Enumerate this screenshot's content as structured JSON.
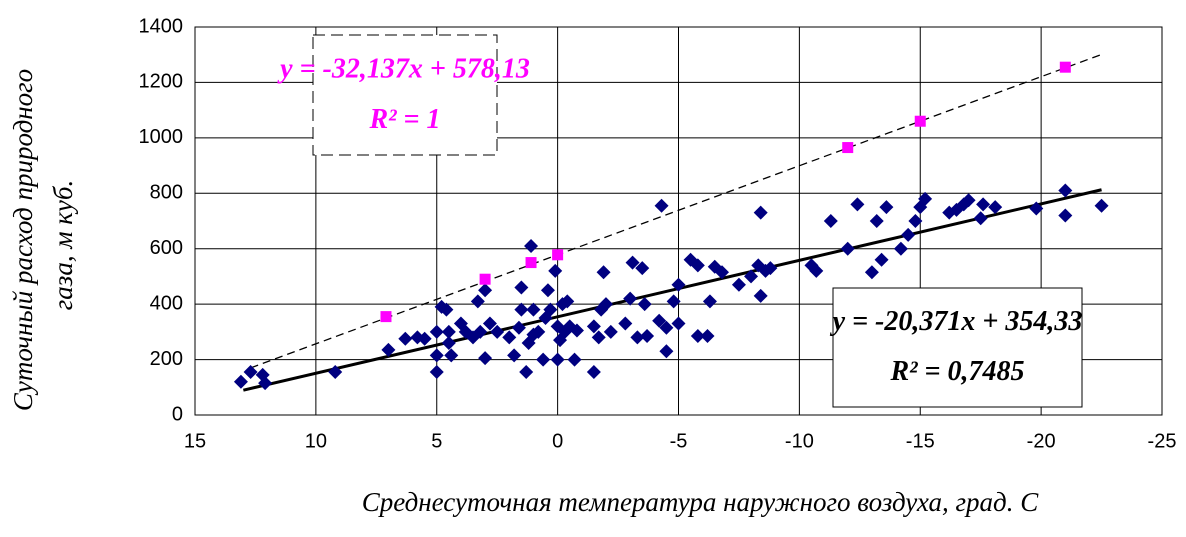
{
  "chart_data": {
    "type": "scatter",
    "xlabel": "Среднесуточная температура наружного воздуха, град. С",
    "ylabel": [
      "Суточный расход природного",
      "газа, м куб."
    ],
    "xlim": [
      15,
      -25
    ],
    "xticks": [
      15,
      10,
      5,
      0,
      -5,
      -10,
      -15,
      -20,
      -25
    ],
    "ylim": [
      0,
      1400
    ],
    "yticks": [
      0,
      200,
      400,
      600,
      800,
      1000,
      1200,
      1400
    ],
    "grid": true,
    "series": [
      {
        "marker": "diamond",
        "color": "#000080",
        "x": [
          13.1,
          12.7,
          12.2,
          12.1,
          9.2,
          7,
          6.3,
          5.8,
          5.5,
          5,
          5,
          5,
          4.8,
          4.6,
          4.5,
          4.5,
          4.4,
          4,
          3.8,
          3.5,
          3.3,
          3.2,
          3,
          3,
          2.8,
          2.5,
          2,
          1.8,
          1.6,
          1.5,
          1.5,
          1.3,
          1.2,
          1,
          1.1,
          1,
          0.8,
          0.6,
          0.5,
          0.4,
          0.3,
          0.1,
          0,
          0,
          -0.1,
          -0.2,
          -0.3,
          -0.4,
          -0.5,
          -0.7,
          -0.8,
          -1.5,
          -1.5,
          -1.7,
          -1.8,
          -1.9,
          -2,
          -2.2,
          -2.8,
          -3,
          -3.1,
          -3.3,
          -3.5,
          -3.7,
          -3.6,
          -4.2,
          -4.3,
          -4.5,
          -4.5,
          -4.8,
          -5,
          -5,
          -5.5,
          -5.8,
          -5.8,
          -6.2,
          -6.3,
          -6.5,
          -6.8,
          -7.5,
          -8,
          -8.3,
          -8.4,
          -8.4,
          -8.6,
          -8.8,
          -10.5,
          -10.7,
          -11.3,
          -12,
          -12.4,
          -13,
          -13.2,
          -13.4,
          -13.6,
          -14.2,
          -14.5,
          -14.8,
          -15,
          -15.2,
          -16.2,
          -16.5,
          -16.8,
          -17,
          -17.5,
          -17.6,
          -18.1,
          -19.8,
          -21,
          -21,
          -22.5
        ],
        "values": [
          120,
          155,
          145,
          115,
          155,
          235,
          275,
          280,
          275,
          300,
          215,
          155,
          390,
          380,
          300,
          260,
          215,
          330,
          300,
          280,
          410,
          300,
          205,
          450,
          330,
          300,
          280,
          215,
          315,
          380,
          460,
          155,
          260,
          290,
          610,
          380,
          300,
          200,
          350,
          450,
          380,
          520,
          200,
          320,
          270,
          400,
          300,
          410,
          320,
          200,
          305,
          155,
          320,
          280,
          380,
          515,
          400,
          300,
          330,
          420,
          550,
          280,
          530,
          285,
          400,
          340,
          755,
          315,
          230,
          410,
          330,
          470,
          560,
          540,
          285,
          285,
          410,
          535,
          515,
          470,
          500,
          540,
          730,
          430,
          520,
          530,
          540,
          520,
          700,
          600,
          760,
          515,
          700,
          560,
          750,
          600,
          650,
          700,
          750,
          780,
          730,
          740,
          760,
          775,
          710,
          760,
          750,
          745,
          720,
          810,
          755
        ]
      },
      {
        "marker": "square",
        "color": "#ff00ff",
        "x": [
          7.1,
          3,
          1.1,
          0,
          -12,
          -15,
          -21
        ],
        "values": [
          355,
          490,
          550,
          578,
          965,
          1060,
          1255
        ]
      }
    ],
    "trendlines": [
      {
        "style": "dashed",
        "color": "#000",
        "x": [
          12.7,
          -22.5
        ],
        "values": [
          170,
          1301
        ]
      },
      {
        "style": "solid",
        "color": "#000",
        "x": [
          13,
          -22.5
        ],
        "values": [
          89.5,
          812.7
        ]
      }
    ],
    "annotations": [
      {
        "lines": [
          "y = -32,137x + 578,13",
          "R² = 1"
        ],
        "color": "#ff00ff",
        "border": "dashed"
      },
      {
        "lines": [
          "y = -20,371x + 354,33",
          "R² = 0,7485"
        ],
        "color": "#000",
        "border": "solid"
      }
    ]
  }
}
